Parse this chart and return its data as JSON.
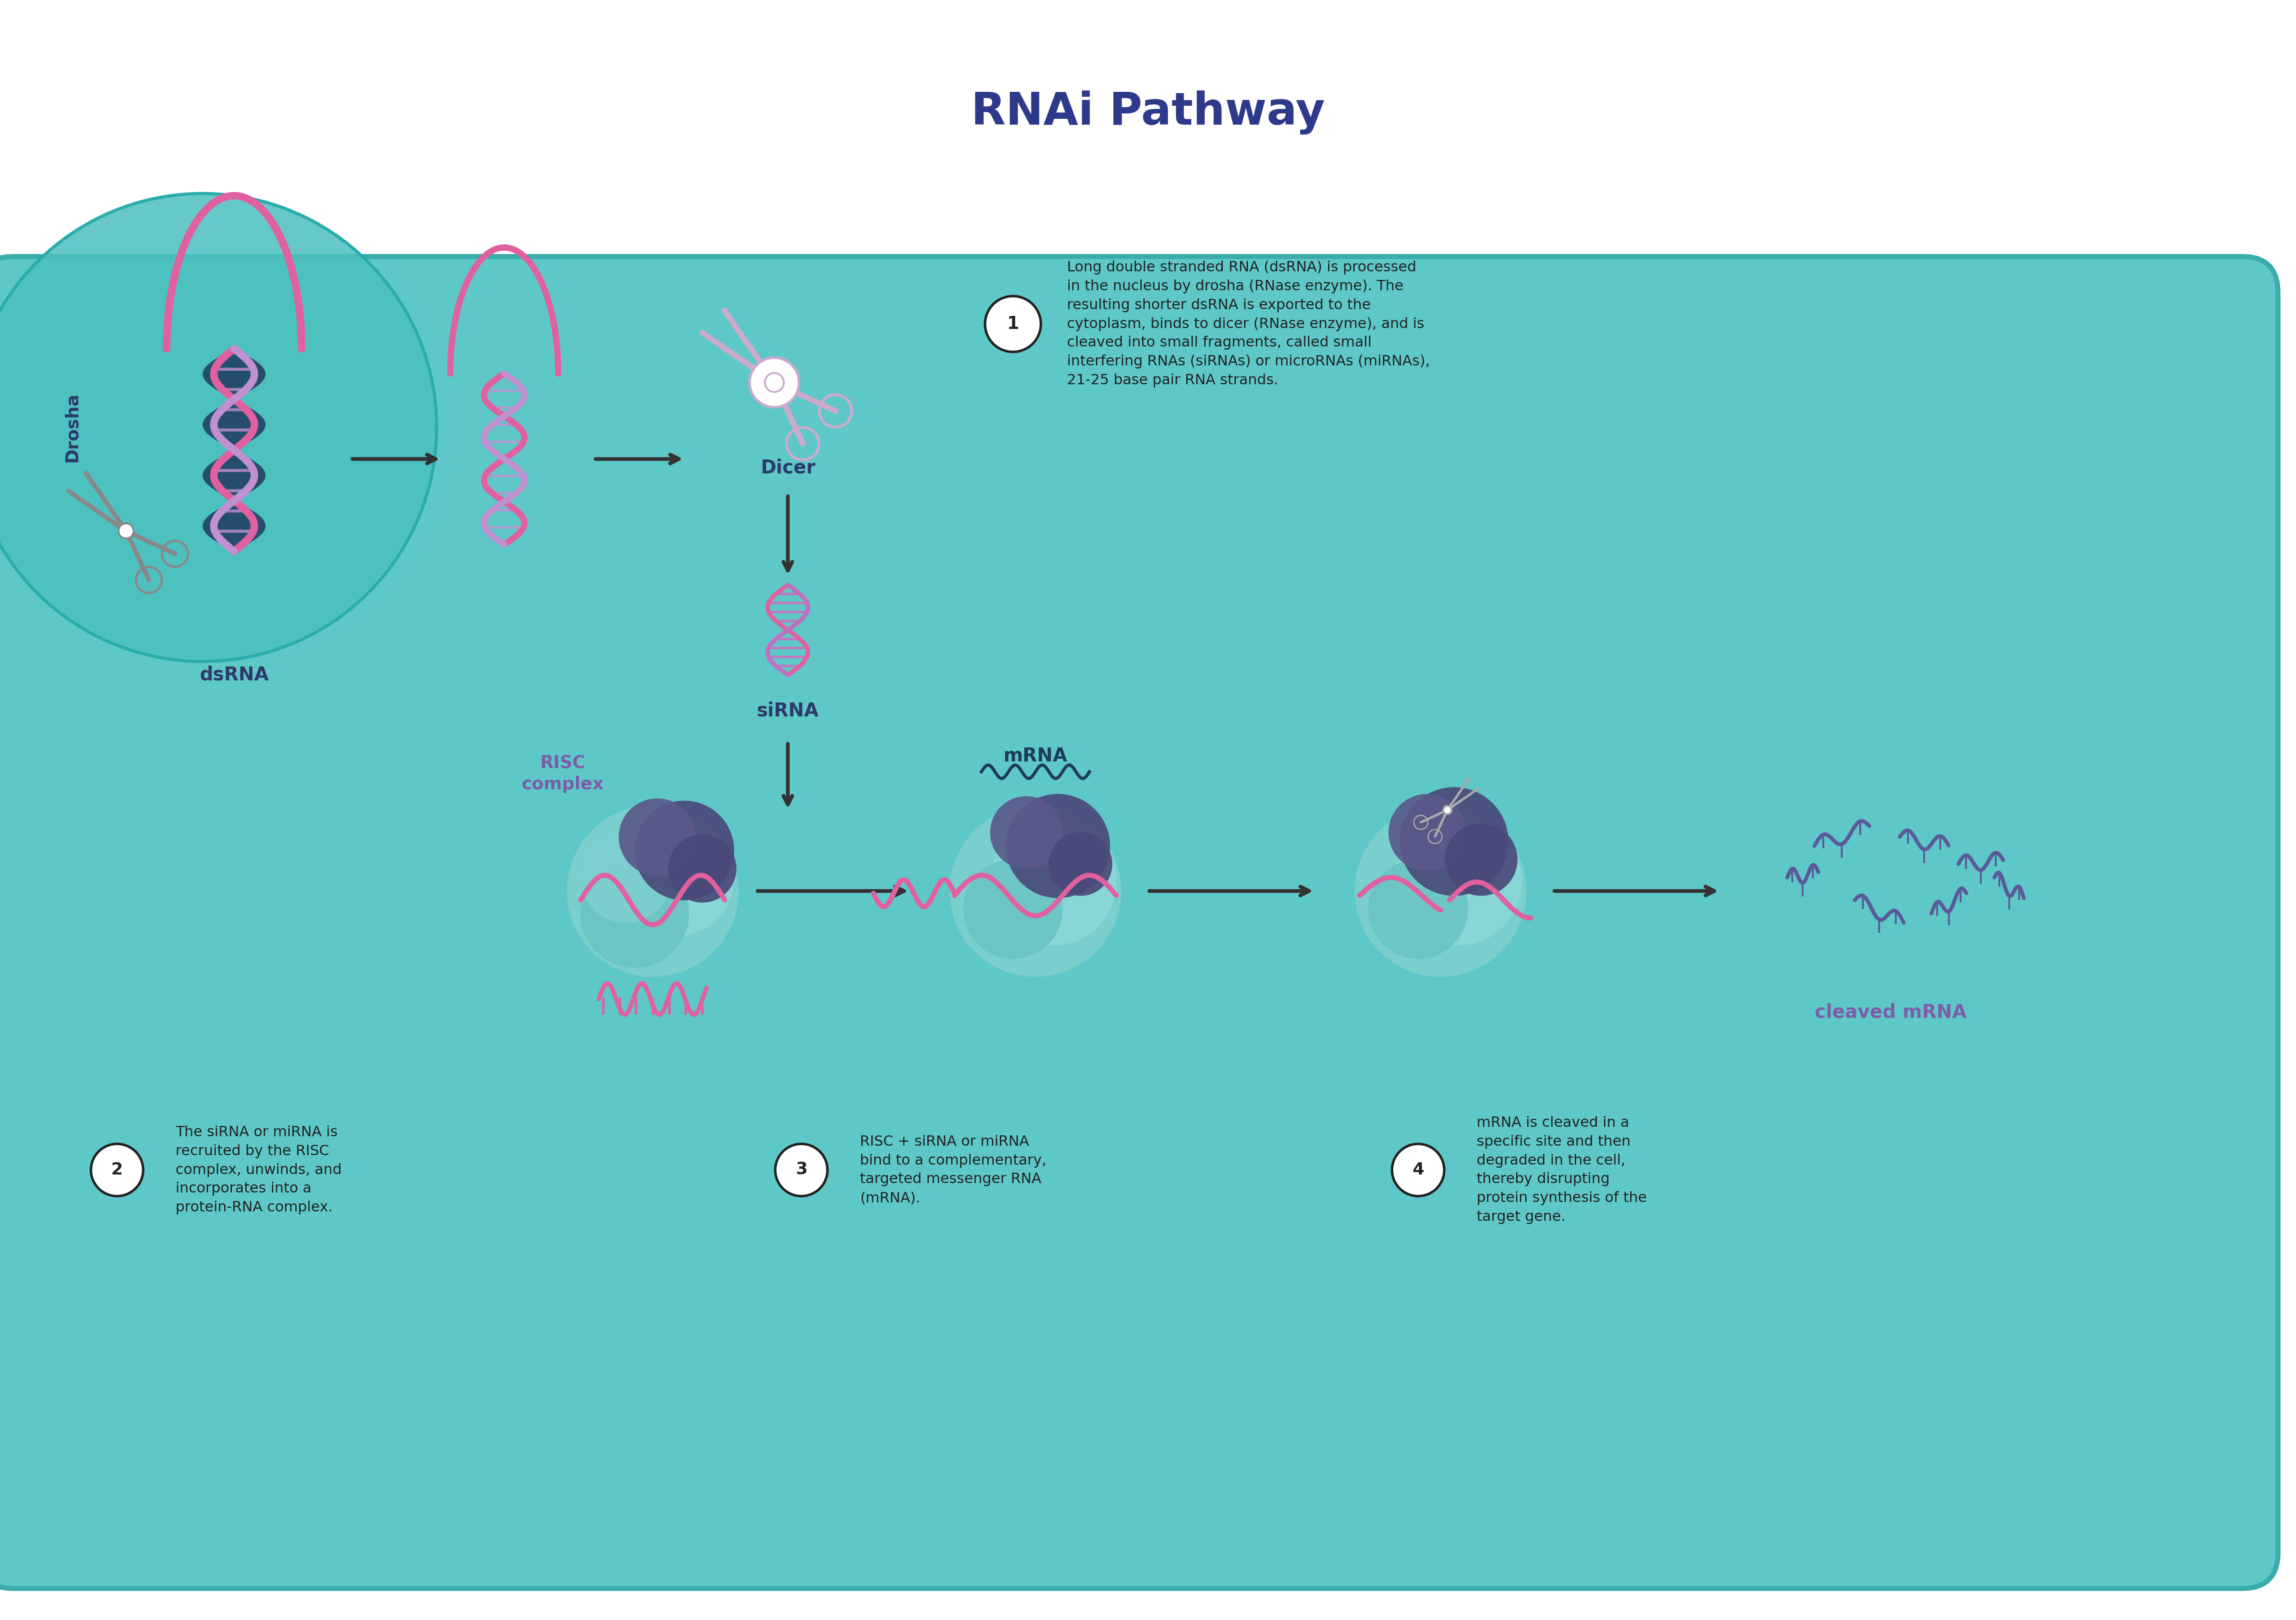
{
  "title": "RNAi Pathway",
  "title_color": "#2d3a8c",
  "title_fontsize": 72,
  "bg_color": "#ffffff",
  "teal_bg": "#5ec8c8",
  "teal_dark": "#3aacac",
  "dark_blue": "#1e3a5f",
  "pink": "#e060a0",
  "light_pink": "#e896c8",
  "purple": "#7b5ea7",
  "light_purple": "#b090d0",
  "gray": "#888888",
  "dark_gray": "#444444",
  "step1_text": "Long double stranded RNA (dsRNA) is processed\nin the nucleus by drosha (RNase enzyme). The\nresulting shorter dsRNA is exported to the\ncytoplasm, binds to dicer (RNase enzyme), and is\ncleaved into small fragments, called small\ninterfering RNAs (siRNAs) or microRNAs (miRNAs),\n21-25 base pair RNA strands.",
  "step2_text": "The siRNA or miRNA is\nrecruited by the RISC\ncomplex, unwinds, and\nincorporates into a\nprotein-RNA complex.",
  "step3_text": "RISC + siRNA or miRNA\nbind to a complementary,\ntargeted messenger RNA\n(mRNA).",
  "step4_text": "mRNA is cleaved in a\nspecific site and then\ndegraded in the cell,\nthereby disrupting\nprotein synthesis of the\ntarget gene.",
  "label_drosha": "Drosha",
  "label_dsrna": "dsRNA",
  "label_dicer": "Dicer",
  "label_sirna": "siRNA",
  "label_risc": "RISC\ncomplex",
  "label_mrna": "mRNA",
  "label_cleaved": "cleaved mRNA"
}
